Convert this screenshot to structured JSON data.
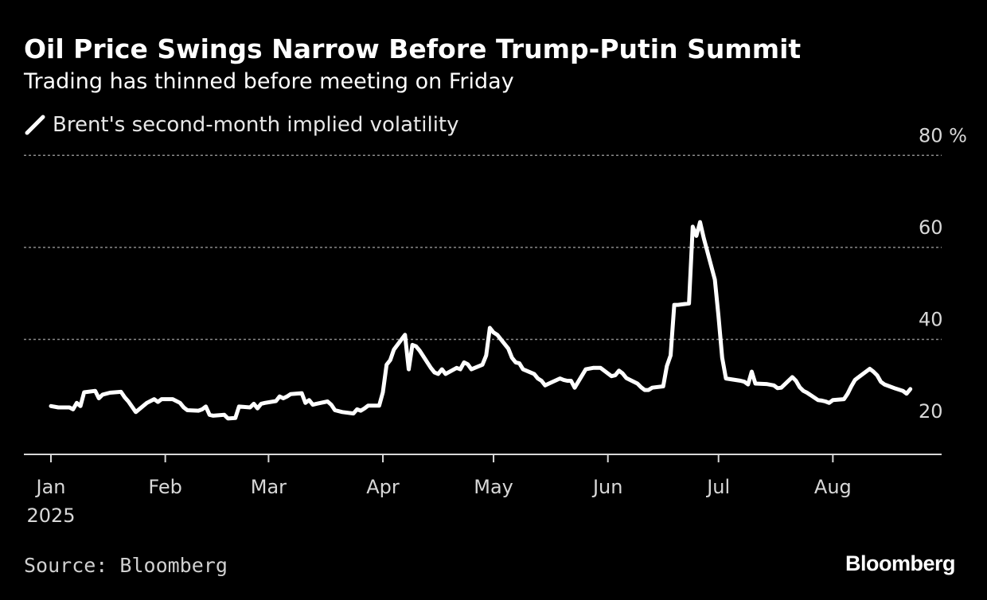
{
  "header": {
    "title": "Oil Price Swings Narrow Before Trump-Putin Summit",
    "subtitle": "Trading has thinned before meeting on Friday"
  },
  "legend": {
    "label": "Brent's second-month implied volatility",
    "color": "#ffffff"
  },
  "footer": {
    "source": "Source: Bloomberg",
    "brand": "Bloomberg"
  },
  "colors": {
    "background": "#000000",
    "line": "#ffffff",
    "grid": "#8a8a8a",
    "text": "#ffffff",
    "muted": "#d0d0d0"
  },
  "chart_data": {
    "type": "line",
    "title": "Oil Price Swings Narrow Before Trump-Putin Summit",
    "subtitle": "Trading has thinned before meeting on Friday",
    "ylim": [
      15,
      80
    ],
    "y_ticks": [
      {
        "value": 80,
        "label": "80 %"
      },
      {
        "value": 60,
        "label": "60"
      },
      {
        "value": 40,
        "label": "40"
      },
      {
        "value": 20,
        "label": "20"
      }
    ],
    "x_ticks": [
      {
        "date": "2025-01-01",
        "label": "Jan",
        "sublabel": "2025"
      },
      {
        "date": "2025-02-01",
        "label": "Feb"
      },
      {
        "date": "2025-03-01",
        "label": "Mar"
      },
      {
        "date": "2025-04-01",
        "label": "Apr"
      },
      {
        "date": "2025-05-01",
        "label": "May"
      },
      {
        "date": "2025-06-01",
        "label": "Jun"
      },
      {
        "date": "2025-07-01",
        "label": "Jul"
      },
      {
        "date": "2025-08-01",
        "label": "Aug"
      }
    ],
    "grid": true,
    "legend_position": "top-left",
    "series": [
      {
        "name": "Brent's second-month implied volatility",
        "color": "#ffffff",
        "points": [
          [
            "2025-01-01",
            25.5
          ],
          [
            "2025-01-03",
            25.2
          ],
          [
            "2025-01-06",
            25.2
          ],
          [
            "2025-01-07",
            24.8
          ],
          [
            "2025-01-08",
            26.2
          ],
          [
            "2025-01-09",
            25.5
          ],
          [
            "2025-01-10",
            28.5
          ],
          [
            "2025-01-13",
            28.8
          ],
          [
            "2025-01-14",
            27.2
          ],
          [
            "2025-01-15",
            28.0
          ],
          [
            "2025-01-17",
            28.4
          ],
          [
            "2025-01-20",
            28.6
          ],
          [
            "2025-01-21",
            27.4
          ],
          [
            "2025-01-22",
            26.5
          ],
          [
            "2025-01-24",
            24.2
          ],
          [
            "2025-01-27",
            26.2
          ],
          [
            "2025-01-29",
            27.0
          ],
          [
            "2025-01-30",
            26.4
          ],
          [
            "2025-01-31",
            27.0
          ],
          [
            "2025-02-03",
            27.0
          ],
          [
            "2025-02-05",
            26.2
          ],
          [
            "2025-02-06",
            25.2
          ],
          [
            "2025-02-07",
            24.6
          ],
          [
            "2025-02-10",
            24.5
          ],
          [
            "2025-02-11",
            24.8
          ],
          [
            "2025-02-12",
            25.4
          ],
          [
            "2025-02-13",
            23.6
          ],
          [
            "2025-02-14",
            23.4
          ],
          [
            "2025-02-17",
            23.6
          ],
          [
            "2025-02-18",
            22.8
          ],
          [
            "2025-02-20",
            22.9
          ],
          [
            "2025-02-21",
            25.4
          ],
          [
            "2025-02-24",
            25.2
          ],
          [
            "2025-02-25",
            26.0
          ],
          [
            "2025-02-26",
            25.0
          ],
          [
            "2025-02-27",
            26.0
          ],
          [
            "2025-02-28",
            26.2
          ],
          [
            "2025-03-03",
            26.6
          ],
          [
            "2025-03-04",
            27.6
          ],
          [
            "2025-03-05",
            27.2
          ],
          [
            "2025-03-06",
            27.6
          ],
          [
            "2025-03-07",
            28.1
          ],
          [
            "2025-03-10",
            28.3
          ],
          [
            "2025-03-11",
            26.2
          ],
          [
            "2025-03-12",
            26.8
          ],
          [
            "2025-03-13",
            25.8
          ],
          [
            "2025-03-14",
            26.0
          ],
          [
            "2025-03-17",
            26.5
          ],
          [
            "2025-03-18",
            25.8
          ],
          [
            "2025-03-19",
            24.6
          ],
          [
            "2025-03-21",
            24.2
          ],
          [
            "2025-03-24",
            23.9
          ],
          [
            "2025-03-25",
            24.8
          ],
          [
            "2025-03-26",
            24.5
          ],
          [
            "2025-03-27",
            25.0
          ],
          [
            "2025-03-28",
            25.6
          ],
          [
            "2025-03-31",
            25.6
          ],
          [
            "2025-04-01",
            28.5
          ],
          [
            "2025-04-02",
            34.5
          ],
          [
            "2025-04-03",
            35.5
          ],
          [
            "2025-04-04",
            37.8
          ],
          [
            "2025-04-07",
            41.0
          ],
          [
            "2025-04-08",
            33.5
          ],
          [
            "2025-04-09",
            38.8
          ],
          [
            "2025-04-10",
            38.5
          ],
          [
            "2025-04-11",
            37.5
          ],
          [
            "2025-04-14",
            33.8
          ],
          [
            "2025-04-15",
            32.8
          ],
          [
            "2025-04-16",
            32.5
          ],
          [
            "2025-04-17",
            33.5
          ],
          [
            "2025-04-18",
            32.5
          ],
          [
            "2025-04-21",
            33.8
          ],
          [
            "2025-04-22",
            33.5
          ],
          [
            "2025-04-23",
            35.0
          ],
          [
            "2025-04-24",
            34.6
          ],
          [
            "2025-04-25",
            33.5
          ],
          [
            "2025-04-28",
            34.5
          ],
          [
            "2025-04-29",
            36.5
          ],
          [
            "2025-04-30",
            42.5
          ],
          [
            "2025-05-01",
            41.5
          ],
          [
            "2025-05-02",
            41.0
          ],
          [
            "2025-05-05",
            38.0
          ],
          [
            "2025-05-06",
            36.0
          ],
          [
            "2025-05-07",
            35.0
          ],
          [
            "2025-05-08",
            34.8
          ],
          [
            "2025-05-09",
            33.5
          ],
          [
            "2025-05-12",
            32.5
          ],
          [
            "2025-05-13",
            31.5
          ],
          [
            "2025-05-14",
            31.0
          ],
          [
            "2025-05-15",
            30.0
          ],
          [
            "2025-05-16",
            30.4
          ],
          [
            "2025-05-19",
            31.5
          ],
          [
            "2025-05-20",
            31.2
          ],
          [
            "2025-05-21",
            31.0
          ],
          [
            "2025-05-22",
            31.0
          ],
          [
            "2025-05-23",
            29.5
          ],
          [
            "2025-05-26",
            33.5
          ],
          [
            "2025-05-28",
            33.8
          ],
          [
            "2025-05-30",
            33.8
          ],
          [
            "2025-06-02",
            32.0
          ],
          [
            "2025-06-03",
            32.2
          ],
          [
            "2025-06-04",
            33.2
          ],
          [
            "2025-06-05",
            32.6
          ],
          [
            "2025-06-06",
            31.6
          ],
          [
            "2025-06-09",
            30.4
          ],
          [
            "2025-06-10",
            29.6
          ],
          [
            "2025-06-11",
            29.0
          ],
          [
            "2025-06-12",
            29.0
          ],
          [
            "2025-06-13",
            29.5
          ],
          [
            "2025-06-16",
            29.8
          ],
          [
            "2025-06-17",
            34.2
          ],
          [
            "2025-06-18",
            36.5
          ],
          [
            "2025-06-19",
            47.5
          ],
          [
            "2025-06-20",
            47.5
          ],
          [
            "2025-06-23",
            47.8
          ],
          [
            "2025-06-24",
            64.5
          ],
          [
            "2025-06-25",
            62.5
          ],
          [
            "2025-06-26",
            65.5
          ],
          [
            "2025-06-27",
            62.0
          ],
          [
            "2025-06-30",
            53.0
          ],
          [
            "2025-07-01",
            45.0
          ],
          [
            "2025-07-02",
            36.0
          ],
          [
            "2025-07-03",
            31.5
          ],
          [
            "2025-07-07",
            31.0
          ],
          [
            "2025-07-08",
            30.8
          ],
          [
            "2025-07-09",
            30.2
          ],
          [
            "2025-07-10",
            33.0
          ],
          [
            "2025-07-11",
            30.4
          ],
          [
            "2025-07-14",
            30.3
          ],
          [
            "2025-07-16",
            30.0
          ],
          [
            "2025-07-17",
            29.4
          ],
          [
            "2025-07-18",
            29.5
          ],
          [
            "2025-07-21",
            31.8
          ],
          [
            "2025-07-22",
            31.0
          ],
          [
            "2025-07-23",
            29.6
          ],
          [
            "2025-07-24",
            28.8
          ],
          [
            "2025-07-25",
            28.4
          ],
          [
            "2025-07-28",
            26.8
          ],
          [
            "2025-07-29",
            26.7
          ],
          [
            "2025-07-30",
            26.5
          ],
          [
            "2025-07-31",
            26.2
          ],
          [
            "2025-08-01",
            26.8
          ],
          [
            "2025-08-04",
            27.0
          ],
          [
            "2025-08-05",
            28.2
          ],
          [
            "2025-08-06",
            29.8
          ],
          [
            "2025-08-07",
            31.2
          ],
          [
            "2025-08-08",
            31.8
          ],
          [
            "2025-08-11",
            33.6
          ],
          [
            "2025-08-12",
            33.0
          ],
          [
            "2025-08-13",
            32.2
          ],
          [
            "2025-08-14",
            30.8
          ],
          [
            "2025-08-15",
            30.2
          ],
          [
            "2025-08-18",
            29.3
          ],
          [
            "2025-08-20",
            28.8
          ],
          [
            "2025-08-21",
            28.2
          ],
          [
            "2025-08-22",
            29.2
          ]
        ]
      }
    ]
  }
}
